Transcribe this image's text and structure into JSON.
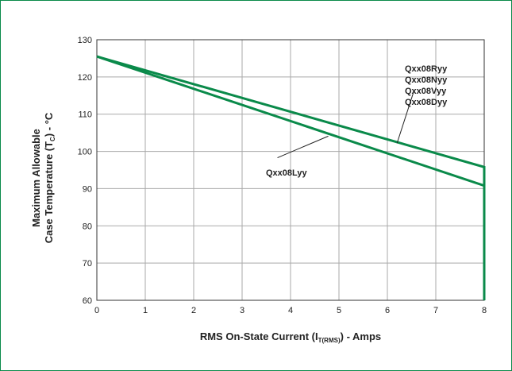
{
  "chart_data": {
    "type": "line",
    "x_ticks": [
      0,
      1,
      2,
      3,
      4,
      5,
      6,
      7,
      8
    ],
    "y_ticks": [
      60,
      70,
      80,
      90,
      100,
      110,
      120,
      130
    ],
    "xlim": [
      0,
      8
    ],
    "ylim": [
      60,
      130
    ],
    "grid": true,
    "xlabel": {
      "pre": "RMS On-State Current (I",
      "sub": "T(RMS)",
      "post": ") - Amps"
    },
    "ylabel": {
      "line1": "Maximum Allowable",
      "line2_pre": "Case Temperature (T",
      "line2_sub": "C",
      "line2_post": ") - °C"
    },
    "series": [
      {
        "name": "Qxx08Ryy / Qxx08Nyy / Qxx08Vyy / Qxx08Dyy",
        "labels": [
          "Qxx08Ryy",
          "Qxx08Nyy",
          "Qxx08Vyy",
          "Qxx08Dyy"
        ],
        "x": [
          0,
          8,
          8
        ],
        "y": [
          125.5,
          95.8,
          60
        ],
        "color": "#0a8a4a"
      },
      {
        "name": "Qxx08Lyy",
        "labels": [
          "Qxx08Lyy"
        ],
        "x": [
          0,
          8,
          8
        ],
        "y": [
          125.5,
          90.8,
          60
        ],
        "color": "#0a8a4a"
      }
    ]
  }
}
